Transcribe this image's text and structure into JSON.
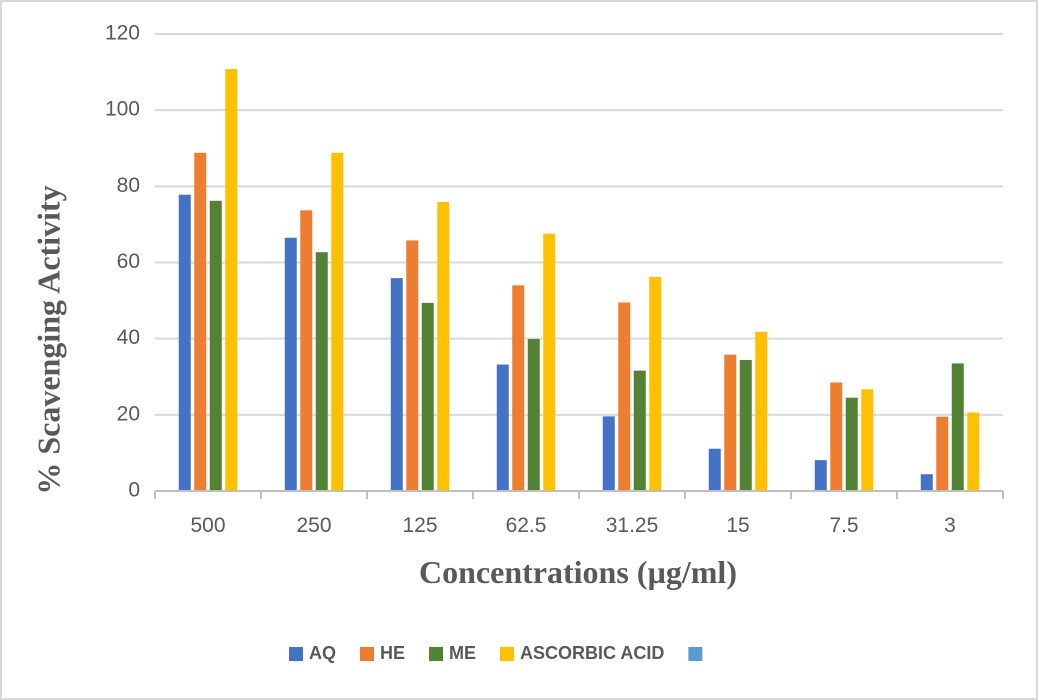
{
  "chart_data": {
    "type": "bar",
    "title": "",
    "xlabel": "Concentrations (µg/ml)",
    "ylabel": "% Scavenging Activity",
    "ylim": [
      0,
      120
    ],
    "yticks": [
      0,
      20,
      40,
      60,
      80,
      100,
      120
    ],
    "grid": true,
    "legend_position": "bottom",
    "categories": [
      "500",
      "250",
      "125",
      "62.5",
      "31.25",
      "15",
      "7.5",
      "3"
    ],
    "series": [
      {
        "name": "AQ",
        "color": "#4472C4",
        "values": [
          77.8,
          66.5,
          55.9,
          33.2,
          19.6,
          11.1,
          8.1,
          4.4
        ]
      },
      {
        "name": "HE",
        "color": "#ED7D31",
        "values": [
          88.8,
          73.7,
          65.8,
          54.0,
          49.5,
          35.8,
          28.5,
          19.5
        ]
      },
      {
        "name": "ME",
        "color": "#548235",
        "values": [
          76.2,
          62.7,
          49.4,
          39.9,
          31.6,
          34.4,
          24.5,
          33.5
        ]
      },
      {
        "name": "ASCORBIC ACID",
        "color": "#FFC000",
        "values": [
          110.8,
          88.8,
          75.9,
          67.6,
          56.2,
          41.8,
          26.7,
          20.6
        ]
      },
      {
        "name": "",
        "color": "#5B9BD5",
        "values": []
      }
    ]
  }
}
